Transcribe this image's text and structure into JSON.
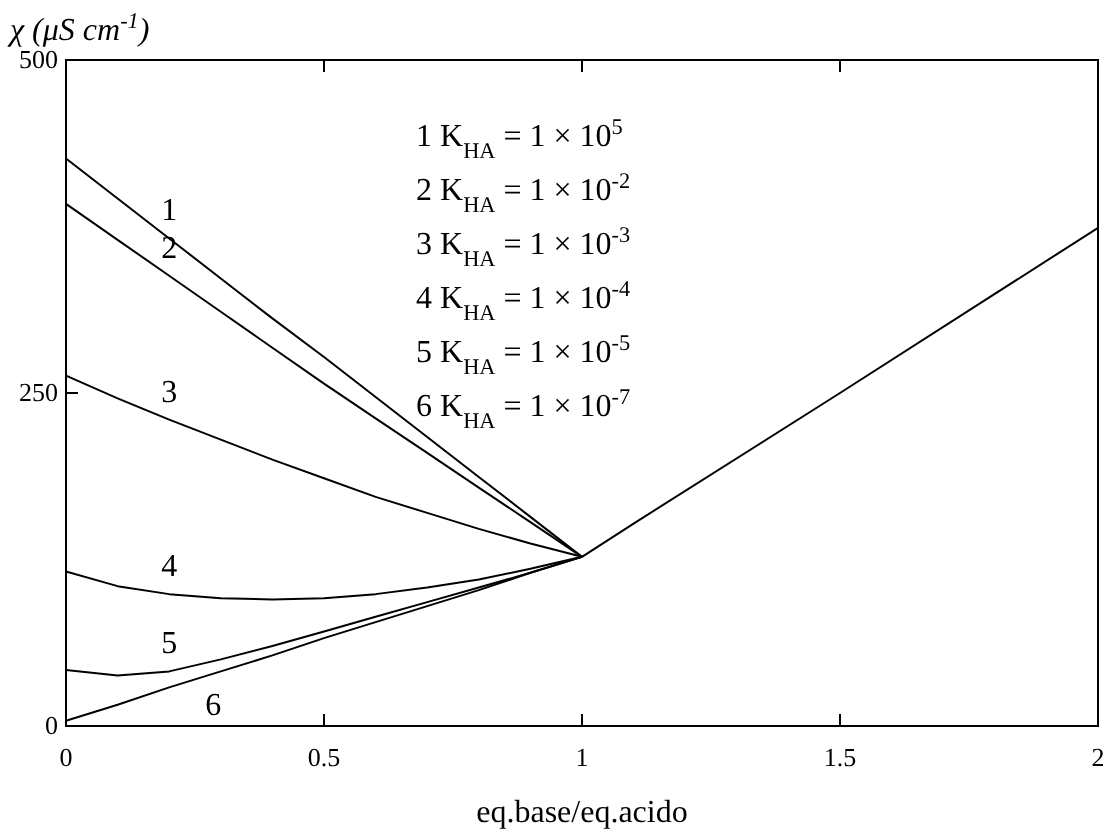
{
  "chart_data": {
    "type": "line",
    "ylabel": "χ (μS cm$^{-1}$)",
    "xlabel": "eq.base/eq.acido",
    "xlim": [
      0,
      2
    ],
    "ylim": [
      0,
      500
    ],
    "xticks": [
      0,
      0.5,
      1,
      1.5,
      2
    ],
    "yticks": [
      0,
      250,
      500
    ],
    "marker": "none",
    "line_style": "solid",
    "x": [
      0,
      0.1,
      0.2,
      0.3,
      0.4,
      0.5,
      0.6,
      0.7,
      0.8,
      0.9,
      1
    ],
    "series": [
      {
        "name": "1",
        "color": "#000000",
        "values": [
          426,
          396,
          366,
          336,
          306,
          277,
          247,
          217,
          187,
          157,
          127
        ]
      },
      {
        "name": "2",
        "color": "#000000",
        "values": [
          392,
          365,
          338,
          311,
          284,
          257,
          231,
          205,
          179,
          153,
          127
        ]
      },
      {
        "name": "3",
        "color": "#000000",
        "values": [
          263,
          246,
          230,
          215,
          200,
          186,
          172,
          160,
          148,
          137,
          127
        ]
      },
      {
        "name": "4",
        "color": "#000000",
        "values": [
          116,
          105,
          99,
          96,
          95,
          96,
          99,
          104,
          110,
          118,
          127
        ]
      },
      {
        "name": "5",
        "color": "#000000",
        "values": [
          42,
          38,
          41,
          50,
          60,
          71,
          82,
          93,
          104,
          115,
          127
        ]
      },
      {
        "name": "6",
        "color": "#000000",
        "x": [
          0,
          0.1,
          0.2,
          0.3,
          0.4,
          0.5,
          0.6,
          0.7,
          0.8,
          0.9,
          1,
          1.1,
          1.5,
          2
        ],
        "values": [
          4,
          16,
          29,
          41,
          53,
          66,
          78,
          90,
          102,
          115,
          127,
          152,
          250,
          374
        ]
      }
    ],
    "annotations": [
      "1 K$_{HA}$ = 1 × 10$^{5}$",
      "2 K$_{HA}$ = 1 × 10$^{-2}$",
      "3 K$_{HA}$ = 1 × 10$^{-3}$",
      "4 K$_{HA}$ = 1 × 10$^{-4}$",
      "5 K$_{HA}$ = 1 × 10$^{-5}$",
      "6 K$_{HA}$ = 1 × 10$^{-7}$"
    ]
  }
}
